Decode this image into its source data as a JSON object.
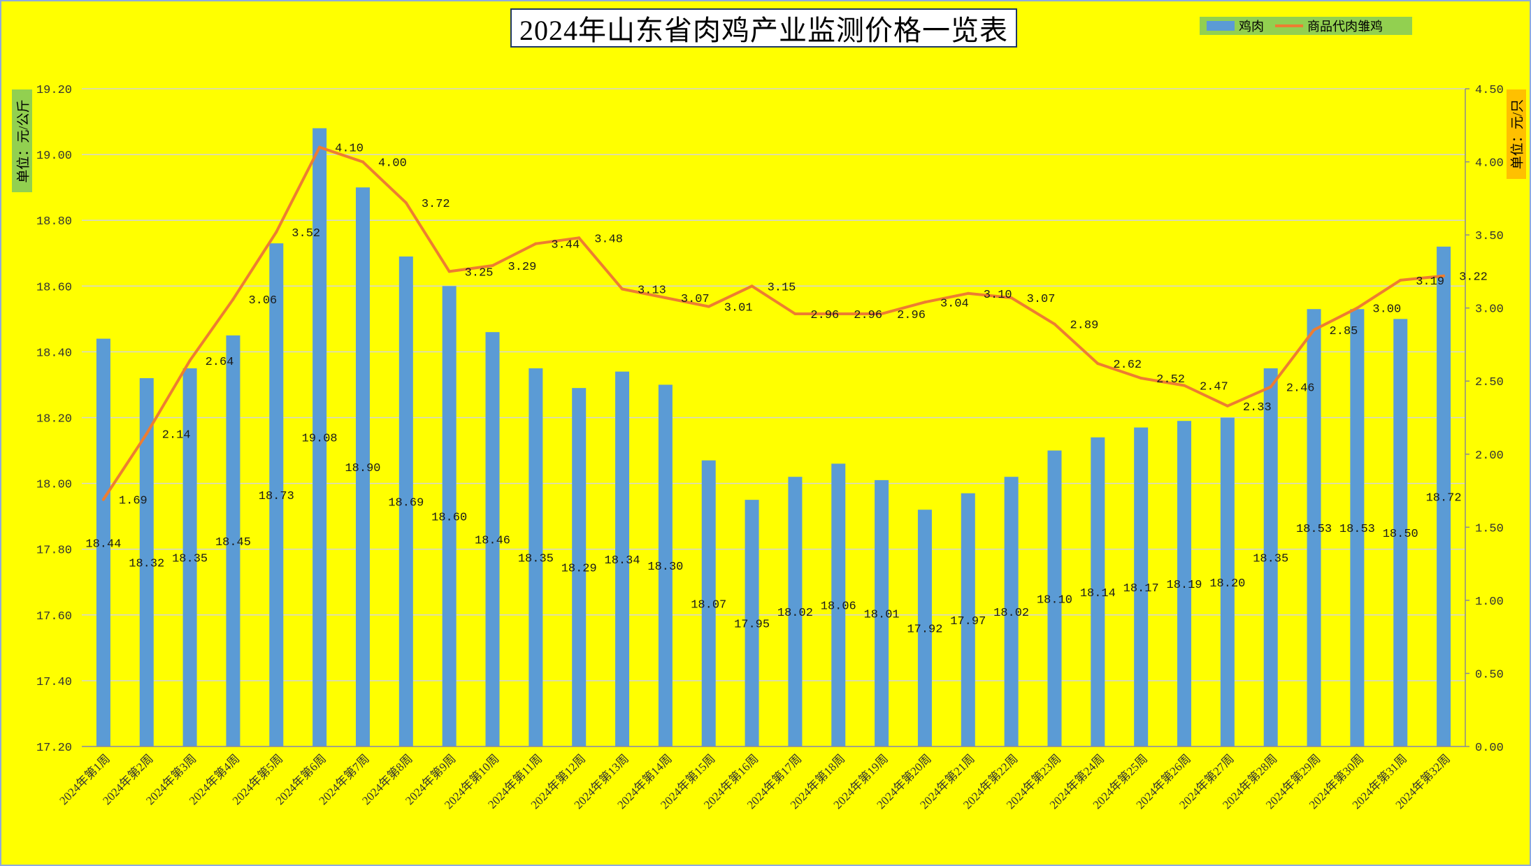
{
  "chart_data": {
    "type": "bar",
    "title": "2024年山东省肉鸡产业监测价格一览表",
    "categories": [
      "2024年第1周",
      "2024年第2周",
      "2024年第3周",
      "2024年第4周",
      "2024年第5周",
      "2024年第6周",
      "2024年第7周",
      "2024年第8周",
      "2024年第9周",
      "2024年第10周",
      "2024年第11周",
      "2024年第12周",
      "2024年第13周",
      "2024年第14周",
      "2024年第15周",
      "2024年第16周",
      "2024年第17周",
      "2024年第18周",
      "2024年第19周",
      "2024年第20周",
      "2024年第21周",
      "2024年第22周",
      "2024年第23周",
      "2024年第24周",
      "2024年第25周",
      "2024年第26周",
      "2024年第27周",
      "2024年第28周",
      "2024年第29周",
      "2024年第30周",
      "2024年第31周",
      "2024年第32周"
    ],
    "series": [
      {
        "name": "鸡肉",
        "type": "bar",
        "axis": "left",
        "values": [
          18.44,
          18.32,
          18.35,
          18.45,
          18.73,
          19.08,
          18.9,
          18.69,
          18.6,
          18.46,
          18.35,
          18.29,
          18.34,
          18.3,
          18.07,
          17.95,
          18.02,
          18.06,
          18.01,
          17.92,
          17.97,
          18.02,
          18.1,
          18.14,
          18.17,
          18.19,
          18.2,
          18.35,
          18.53,
          18.53,
          18.5,
          18.72
        ]
      },
      {
        "name": "商品代肉雏鸡",
        "type": "line",
        "axis": "right",
        "values": [
          1.69,
          2.14,
          2.64,
          3.06,
          3.52,
          4.1,
          4.0,
          3.72,
          3.25,
          3.29,
          3.44,
          3.48,
          3.13,
          3.07,
          3.01,
          3.15,
          2.96,
          2.96,
          2.96,
          3.04,
          3.1,
          3.07,
          2.89,
          2.62,
          2.52,
          2.47,
          2.33,
          2.46,
          2.85,
          3.0,
          3.19,
          3.22
        ]
      }
    ],
    "xlabel": "",
    "ylabel": "单位：元/公斤",
    "y2label": "单位：元/只",
    "ylim": [
      17.2,
      19.2
    ],
    "y2lim": [
      0,
      4.5
    ],
    "yticks": [
      "17.20",
      "17.40",
      "17.60",
      "17.80",
      "18.00",
      "18.20",
      "18.40",
      "18.60",
      "18.80",
      "19.00",
      "19.20"
    ],
    "y2ticks": [
      "0.00",
      "0.50",
      "1.00",
      "1.50",
      "2.00",
      "2.50",
      "3.00",
      "3.50",
      "4.00",
      "4.50"
    ],
    "grid": true,
    "legend_position": "top-right",
    "data_labels": true
  },
  "colors": {
    "background": "#FFFF00",
    "bar": "#5B9BD5",
    "line": "#ED7D31",
    "gridline": "#D4D4D4",
    "axis": "#8C8C8C",
    "legend_bg": "#92D050",
    "left_title_bg": "#92D050",
    "right_title_bg": "#FFC000"
  }
}
